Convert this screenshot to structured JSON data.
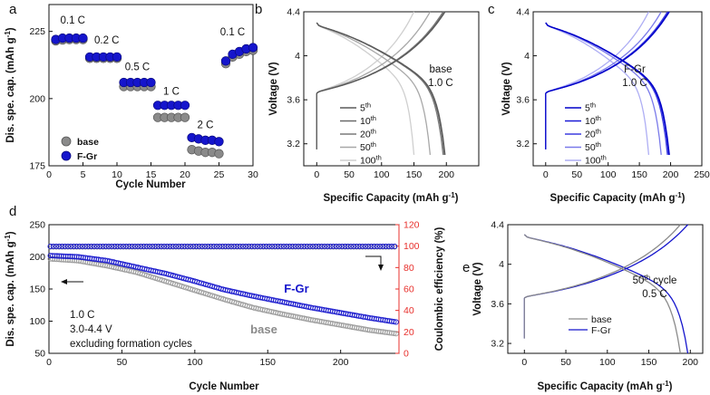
{
  "figure": {
    "panel_labels": [
      "a",
      "b",
      "c",
      "d",
      "e"
    ]
  },
  "colors": {
    "blue": "#1515cc",
    "gray": "#8a8a8a",
    "red": "#e8302c"
  },
  "chart_data": [
    {
      "panel": "a",
      "type": "scatter",
      "xlabel": "Cycle Number",
      "ylabel": "Dis. spe. cap. (mAh g-1)",
      "xlim": [
        0,
        30
      ],
      "ylim": [
        175,
        235
      ],
      "xticks": [
        0,
        5,
        10,
        15,
        20,
        25,
        30
      ],
      "yticks": [
        175,
        200,
        225
      ],
      "legend": [
        "base",
        "F-Gr"
      ],
      "rate_labels": [
        {
          "text": "0.1 C",
          "x": 3.5,
          "y": 228
        },
        {
          "text": "0.2 C",
          "x": 8.5,
          "y": 220.5
        },
        {
          "text": "0.5 C",
          "x": 13,
          "y": 210.5
        },
        {
          "text": "1 C",
          "x": 18,
          "y": 201.5
        },
        {
          "text": "2 C",
          "x": 23,
          "y": 189
        },
        {
          "text": "0.1 C",
          "x": 27,
          "y": 223.5
        }
      ],
      "series": [
        {
          "name": "base",
          "x": [
            1,
            2,
            3,
            4,
            5,
            6,
            7,
            8,
            9,
            10,
            11,
            12,
            13,
            14,
            15,
            16,
            17,
            18,
            19,
            20,
            21,
            22,
            23,
            24,
            25,
            26,
            27,
            28,
            29,
            30
          ],
          "y": [
            221.5,
            221.8,
            222,
            222,
            222,
            215,
            215,
            215,
            215,
            215,
            204.5,
            204.5,
            204.5,
            204.5,
            204.5,
            193,
            193,
            193,
            193,
            193,
            181,
            180.5,
            180,
            180,
            179.5,
            213,
            215.5,
            216.5,
            217.5,
            218
          ]
        },
        {
          "name": "F-Gr",
          "x": [
            1,
            2,
            3,
            4,
            5,
            6,
            7,
            8,
            9,
            10,
            11,
            12,
            13,
            14,
            15,
            16,
            17,
            18,
            19,
            20,
            21,
            22,
            23,
            24,
            25,
            26,
            27,
            28,
            29,
            30
          ],
          "y": [
            222,
            222.5,
            222.5,
            222.5,
            222.5,
            215.5,
            215.5,
            215.5,
            215.5,
            215.5,
            206,
            206,
            206,
            206,
            206,
            197.5,
            197.5,
            197.5,
            197.5,
            197.5,
            185.5,
            185,
            184.5,
            184.5,
            184,
            214,
            216.5,
            217.5,
            218.5,
            219
          ]
        }
      ]
    },
    {
      "panel": "b",
      "type": "line",
      "xlabel": "Specific Capacity (mAh g-1)",
      "ylabel": "Voltage (V)",
      "xlim": [
        -20,
        250
      ],
      "ylim": [
        3.0,
        4.4
      ],
      "xticks": [
        0,
        50,
        100,
        150,
        200
      ],
      "yticks": [
        3.2,
        3.6,
        4.0,
        4.4
      ],
      "annotation": {
        "line1": "base",
        "line2": "1.0 C"
      },
      "legend": [
        {
          "n": "5",
          "sup": "th"
        },
        {
          "n": "10",
          "sup": "th"
        },
        {
          "n": "20",
          "sup": "th"
        },
        {
          "n": "50",
          "sup": "th"
        },
        {
          "n": "100",
          "sup": "th"
        }
      ],
      "series": [
        {
          "name": "5th",
          "color": "#5a5a5a",
          "capacity_end": 198
        },
        {
          "name": "10th",
          "color": "#6a6a6a",
          "capacity_end": 197
        },
        {
          "name": "20th",
          "color": "#7a7a7a",
          "capacity_end": 195
        },
        {
          "name": "50th",
          "color": "#a8a8a8",
          "capacity_end": 175
        },
        {
          "name": "100th",
          "color": "#cfcfcf",
          "capacity_end": 150
        }
      ]
    },
    {
      "panel": "c",
      "type": "line",
      "xlabel": "Specific Capacity (mAh g-1)",
      "ylabel": "Voltage (V)",
      "xlim": [
        -20,
        250
      ],
      "ylim": [
        3.0,
        4.4
      ],
      "xticks": [
        0,
        50,
        100,
        150,
        200,
        250
      ],
      "yticks": [
        3.2,
        3.6,
        4.0,
        4.4
      ],
      "annotation": {
        "line1": "F-Gr",
        "line2": "1.0 C"
      },
      "legend": [
        {
          "n": "5",
          "sup": "th"
        },
        {
          "n": "10",
          "sup": "th"
        },
        {
          "n": "20",
          "sup": "th"
        },
        {
          "n": "50",
          "sup": "th"
        },
        {
          "n": "100",
          "sup": "th"
        }
      ],
      "series": [
        {
          "name": "5th",
          "color": "#0000c8",
          "capacity_end": 198
        },
        {
          "name": "10th",
          "color": "#1a1ad6",
          "capacity_end": 197
        },
        {
          "name": "20th",
          "color": "#3d3de0",
          "capacity_end": 195
        },
        {
          "name": "50th",
          "color": "#7a7aea",
          "capacity_end": 185
        },
        {
          "name": "100th",
          "color": "#aeaef4",
          "capacity_end": 165
        }
      ]
    },
    {
      "panel": "d",
      "type": "scatter",
      "xlabel": "Cycle Number",
      "ylabel": "Dis. spe. cap. (mAh g-1)",
      "y2label": "Coulombic efficiency (%)",
      "xlim": [
        0,
        240
      ],
      "ylim": [
        50,
        250
      ],
      "y2lim": [
        0,
        120
      ],
      "xticks": [
        0,
        50,
        100,
        150,
        200
      ],
      "yticks": [
        50,
        100,
        150,
        200,
        250
      ],
      "y2ticks": [
        0,
        20,
        40,
        60,
        80,
        100,
        120
      ],
      "annotation": {
        "line1": "1.0 C",
        "line2": "3.0-4.4 V",
        "line3": "excluding formation cycles"
      },
      "series_labels": {
        "fgr": "F-Gr",
        "base": "base"
      },
      "series": [
        {
          "name": "F-Gr capacity",
          "x": [
            0,
            20,
            40,
            60,
            80,
            100,
            120,
            140,
            160,
            180,
            200,
            220,
            240
          ],
          "y": [
            202,
            200,
            194,
            184,
            174,
            162,
            149,
            139,
            130,
            121,
            113,
            105,
            98
          ]
        },
        {
          "name": "base capacity",
          "x": [
            0,
            20,
            40,
            60,
            80,
            100,
            120,
            140,
            160,
            180,
            200,
            220,
            240
          ],
          "y": [
            197,
            194,
            186,
            176,
            162,
            148,
            134,
            121,
            111,
            102,
            94,
            86,
            80
          ]
        },
        {
          "name": "F-Gr CE",
          "x": [
            0,
            240
          ],
          "y": [
            99.8,
            99.8
          ]
        },
        {
          "name": "base CE",
          "x": [
            0,
            240
          ],
          "y": [
            99.3,
            99.3
          ]
        }
      ]
    },
    {
      "panel": "e",
      "type": "line",
      "xlabel": "Specific Capacity (mAh g-1)",
      "ylabel": "Voltage (V)",
      "xlim": [
        -20,
        215
      ],
      "ylim": [
        3.1,
        4.4
      ],
      "xticks": [
        0,
        50,
        100,
        150,
        200
      ],
      "yticks": [
        3.2,
        3.6,
        4.0,
        4.4
      ],
      "annotation": {
        "line1n": "50",
        "line1sup": "th",
        "line1rest": " cycle",
        "line2": "0.5 C"
      },
      "legend": [
        "base",
        "F-Gr"
      ],
      "series": [
        {
          "name": "base",
          "color": "#8a8a8a",
          "capacity_end": 188
        },
        {
          "name": "F-Gr",
          "color": "#1515cc",
          "capacity_end": 197
        }
      ]
    }
  ]
}
